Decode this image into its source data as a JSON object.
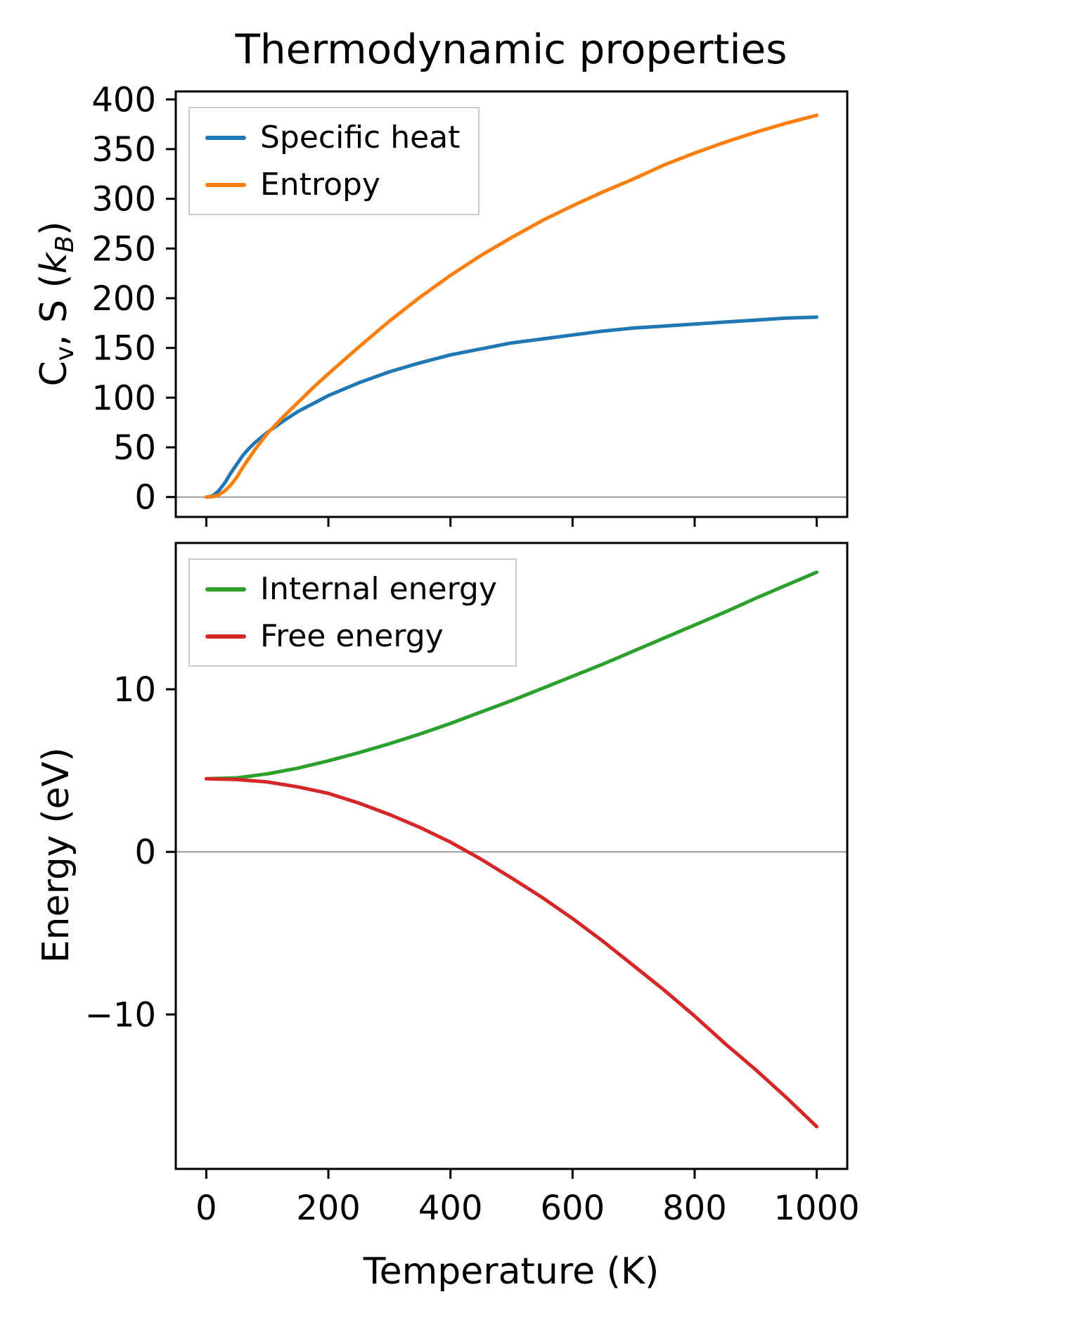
{
  "labels": {
    "title": "Thermodynamic properties",
    "xlabel": "Temperature (K)",
    "energy_ylabel": "Energy (eV)",
    "cv_c": "C",
    "cv_v": "v",
    "cv_mid": ", S (",
    "kb_k": "k",
    "kb_b": "B",
    "cv_end": ")"
  },
  "colors": {
    "specific_heat": "#1f77b4",
    "entropy": "#ff7f0e",
    "internal_energy": "#2ca02c",
    "free_energy": "#d62728",
    "zero_line": "#999999",
    "axes": "#000000"
  },
  "chart_data": [
    {
      "type": "line",
      "title": "Thermodynamic properties",
      "ylabel": "Cv, S (kB)",
      "xlabel": "",
      "xlim": [
        -50,
        1050
      ],
      "ylim": [
        -20,
        408
      ],
      "xticks": [
        0,
        200,
        400,
        600,
        800,
        1000
      ],
      "yticks": [
        0,
        50,
        100,
        150,
        200,
        250,
        300,
        350,
        400
      ],
      "grid": false,
      "zero_line": true,
      "legend_position": "upper left",
      "series": [
        {
          "name": "Specific heat",
          "color": "#1f77b4",
          "x": [
            0,
            10,
            20,
            30,
            40,
            50,
            60,
            70,
            80,
            90,
            100,
            125,
            150,
            175,
            200,
            250,
            300,
            350,
            400,
            450,
            500,
            550,
            600,
            650,
            700,
            750,
            800,
            850,
            900,
            950,
            1000
          ],
          "y": [
            0,
            1,
            6,
            14,
            24,
            33,
            42,
            49,
            55,
            60,
            65,
            76,
            86,
            94,
            102,
            115,
            126,
            135,
            143,
            149,
            155,
            159,
            163,
            167,
            170,
            172,
            174,
            176,
            178,
            180,
            181
          ]
        },
        {
          "name": "Entropy",
          "color": "#ff7f0e",
          "x": [
            0,
            10,
            20,
            30,
            40,
            50,
            60,
            70,
            80,
            90,
            100,
            125,
            150,
            175,
            200,
            250,
            300,
            350,
            400,
            450,
            500,
            550,
            600,
            650,
            700,
            750,
            800,
            850,
            900,
            950,
            1000
          ],
          "y": [
            0,
            0.3,
            2,
            6,
            12,
            20,
            30,
            39,
            48,
            56,
            64,
            80,
            95,
            110,
            124,
            151,
            177,
            201,
            223,
            243,
            261,
            278,
            293,
            307,
            320,
            334,
            346,
            357,
            367,
            376,
            384
          ]
        }
      ]
    },
    {
      "type": "line",
      "title": "",
      "ylabel": "Energy (eV)",
      "xlabel": "Temperature (K)",
      "xlim": [
        -50,
        1050
      ],
      "ylim": [
        -19.5,
        19
      ],
      "xticks": [
        0,
        200,
        400,
        600,
        800,
        1000
      ],
      "yticks": [
        -10,
        0,
        10
      ],
      "grid": false,
      "zero_line": true,
      "legend_position": "upper left",
      "series": [
        {
          "name": "Internal energy",
          "color": "#2ca02c",
          "x": [
            0,
            50,
            100,
            150,
            200,
            250,
            300,
            350,
            400,
            450,
            500,
            550,
            600,
            650,
            700,
            750,
            800,
            850,
            900,
            950,
            1000
          ],
          "y": [
            4.5,
            4.55,
            4.8,
            5.15,
            5.6,
            6.1,
            6.65,
            7.25,
            7.9,
            8.6,
            9.3,
            10.05,
            10.8,
            11.55,
            12.35,
            13.15,
            13.95,
            14.75,
            15.6,
            16.4,
            17.2
          ]
        },
        {
          "name": "Free energy",
          "color": "#d62728",
          "x": [
            0,
            50,
            100,
            150,
            200,
            250,
            300,
            350,
            400,
            450,
            500,
            550,
            600,
            650,
            700,
            750,
            800,
            850,
            900,
            950,
            1000
          ],
          "y": [
            4.5,
            4.45,
            4.3,
            4.0,
            3.6,
            3.0,
            2.3,
            1.5,
            0.6,
            -0.45,
            -1.6,
            -2.8,
            -4.1,
            -5.5,
            -7.0,
            -8.5,
            -10.1,
            -11.8,
            -13.4,
            -15.1,
            -16.9
          ]
        }
      ]
    }
  ]
}
